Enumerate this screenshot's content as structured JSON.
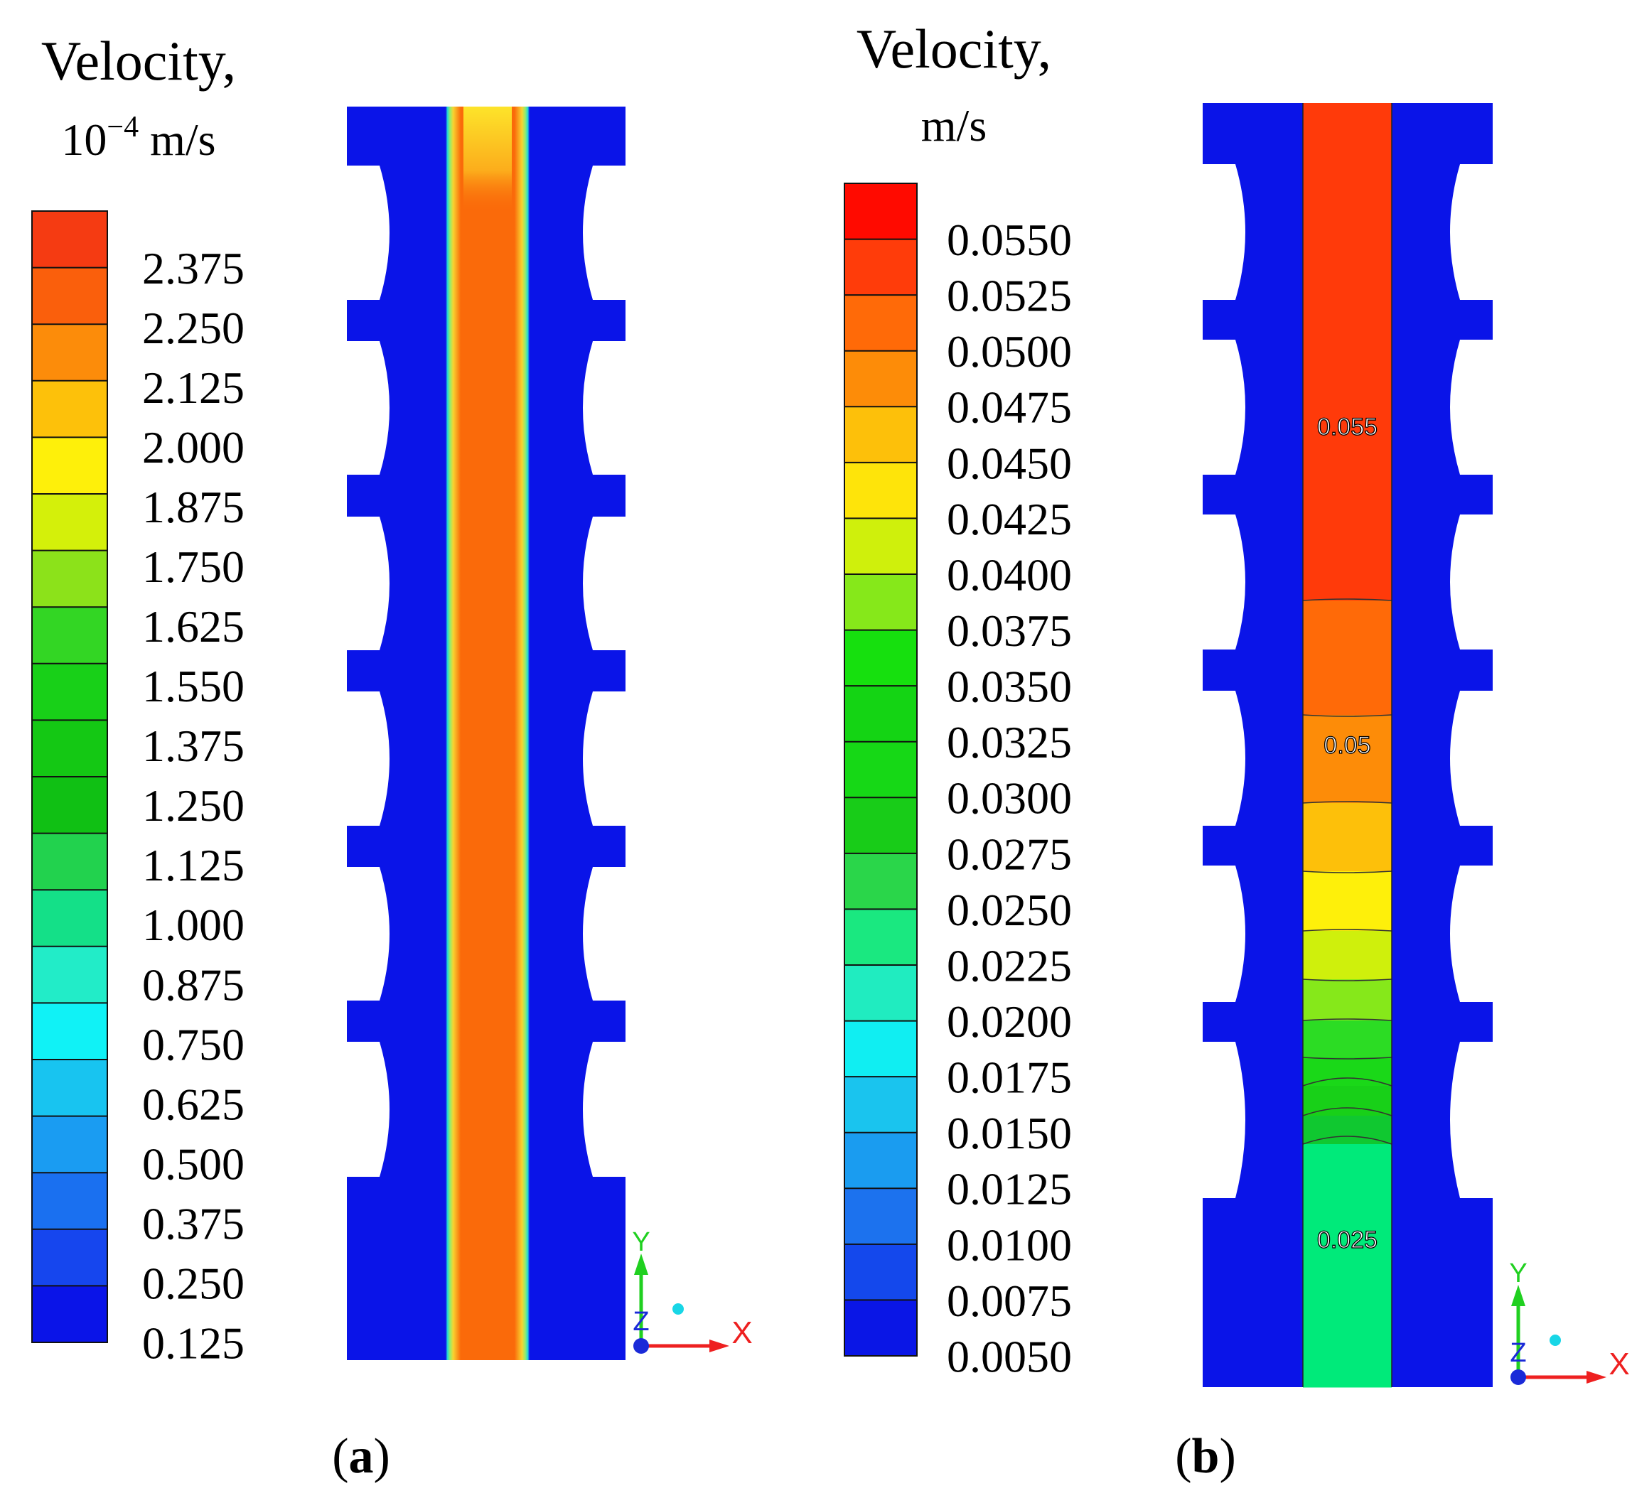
{
  "panels": [
    {
      "id": "a",
      "legend_title": "Velocity,",
      "legend_unit_prefix": "10",
      "legend_unit_exp": "−4",
      "legend_unit_suffix": " m/s",
      "ticks": [
        "2.375",
        "2.250",
        "2.125",
        "2.000",
        "1.875",
        "1.750",
        "1.625",
        "1.550",
        "1.375",
        "1.250",
        "1.125",
        "1.000",
        "0.875",
        "0.750",
        "0.625",
        "0.500",
        "0.375",
        "0.250",
        "0.125"
      ],
      "band_colors": [
        "#f53b12",
        "#fa5f0c",
        "#fc8c0a",
        "#fdc10a",
        "#fef00a",
        "#d4f00a",
        "#8ce21a",
        "#33d624",
        "#18d018",
        "#14c814",
        "#10c014",
        "#22d24e",
        "#14e088",
        "#22ecc8",
        "#10f2f6",
        "#18c4f0",
        "#1a9cf2",
        "#1a70f0",
        "#1646ee",
        "#0a14e8"
      ],
      "field": {
        "wall_color": "#0a14e8",
        "core_color": "#fa6a0a",
        "top_color": "#fde42a",
        "ring_colors": [
          "#20d8d8",
          "#90ec70",
          "#f8d430"
        ]
      },
      "caption_open": "(",
      "caption_letter": "a",
      "caption_close": ")",
      "axes": {
        "y": "Y",
        "z": "Z",
        "x": "X"
      }
    },
    {
      "id": "b",
      "legend_title": "Velocity,",
      "legend_unit": "m/s",
      "ticks": [
        "0.0550",
        "0.0525",
        "0.0500",
        "0.0475",
        "0.0450",
        "0.0425",
        "0.0400",
        "0.0375",
        "0.0350",
        "0.0325",
        "0.0300",
        "0.0275",
        "0.0250",
        "0.0225",
        "0.0200",
        "0.0175",
        "0.0150",
        "0.0125",
        "0.0100",
        "0.0075",
        "0.0050"
      ],
      "band_colors": [
        "#ff0a00",
        "#ff3c0a",
        "#ff6a08",
        "#fd8c08",
        "#fdc00a",
        "#fee40a",
        "#cff00c",
        "#86e81a",
        "#16e00e",
        "#14d414",
        "#16d816",
        "#18cc18",
        "#2ad64a",
        "#1ae880",
        "#20ecc0",
        "#10eef2",
        "#1ac4ee",
        "#1a9cf0",
        "#1c72ee",
        "#1448ec",
        "#0a16e6"
      ],
      "zones": [
        {
          "color": "#ff3a0a"
        },
        {
          "color": "#ff6a08"
        },
        {
          "color": "#fd8c08"
        },
        {
          "color": "#fdc00a"
        },
        {
          "color": "#fef00a"
        },
        {
          "color": "#cff00c"
        },
        {
          "color": "#86e81a"
        },
        {
          "color": "#2cdc24"
        },
        {
          "color": "#1ad818"
        },
        {
          "color": "#18d018"
        },
        {
          "color": "#10c830"
        },
        {
          "color": "#00ea7a"
        }
      ],
      "wall_color": "#0a14e8",
      "contour_labels": [
        "0.055",
        "0.05",
        "0.025"
      ],
      "caption_open": "(",
      "caption_letter": "b",
      "caption_close": ")",
      "axes": {
        "y": "Y",
        "z": "Z",
        "x": "X"
      }
    }
  ]
}
